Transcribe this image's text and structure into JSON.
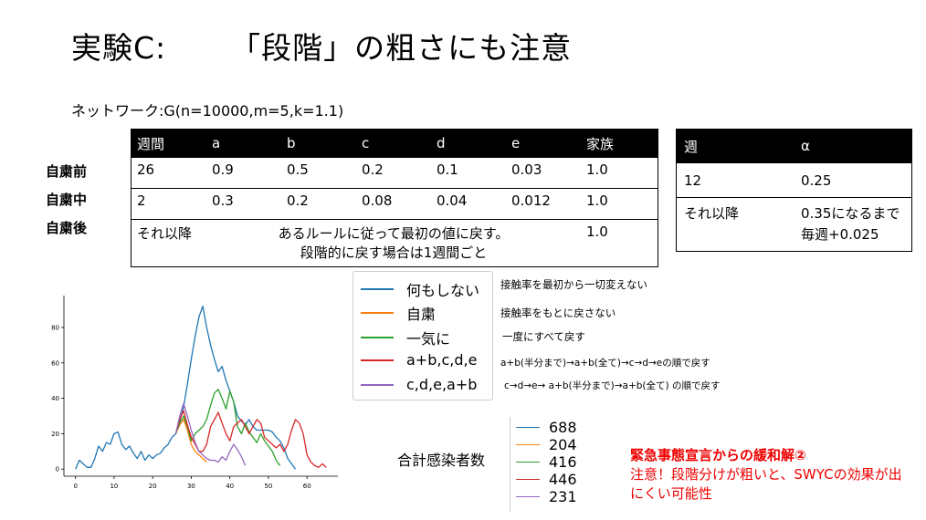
{
  "title": {
    "part1": "実験C:",
    "part2": "「段階」の粗さにも注意"
  },
  "network": "ネットワーク:G(n=10000,m=5,k=1.1)",
  "row_labels": [
    "自粛前",
    "自粛中",
    "自粛後"
  ],
  "table1": {
    "headers": [
      "週間",
      "a",
      "b",
      "c",
      "d",
      "e",
      "家族"
    ],
    "rows": [
      [
        "26",
        "0.9",
        "0.5",
        "0.2",
        "0.1",
        "0.03",
        "1.0"
      ],
      [
        "2",
        "0.3",
        "0.2",
        "0.08",
        "0.04",
        "0.012",
        "1.0"
      ]
    ],
    "after": {
      "week": "それ以降",
      "rule": "あるルールに従って最初の値に戻す。\n段階的に戻す場合は1週間ごと",
      "family": "1.0"
    }
  },
  "table2": {
    "headers": [
      "週",
      "α"
    ],
    "rows": [
      [
        "12",
        "0.25"
      ],
      [
        "それ以降",
        "0.35になるまで毎週+0.025"
      ]
    ]
  },
  "legend": [
    {
      "label": "何もしない",
      "color": "#1f77b4",
      "desc": "接触率を最初から一切変えない"
    },
    {
      "label": "自粛",
      "color": "#ff7f0e",
      "desc": "接触率をもとに戻さない"
    },
    {
      "label": "一気に",
      "color": "#2ca02c",
      "desc": "一度にすべて戻す"
    },
    {
      "label": "a+b,c,d,e",
      "color": "#d62728",
      "desc": "a+b(半分まで)→a+b(全て)→c→d→eの順で戻す"
    },
    {
      "label": "c,d,e,a+b",
      "color": "#9467bd",
      "desc": "c→d→e→ a+b(半分まで)→a+b(全て) の順で戻す"
    }
  ],
  "totals": {
    "label": "合計感染者数",
    "values": [
      "688",
      "204",
      "416",
      "446",
      "231"
    ]
  },
  "note": {
    "heading": "緊急事態宣言からの緩和解②",
    "body": "注意！段階分けが粗いと、SWYCの効果が出にくい可能性"
  },
  "chart_data": {
    "type": "line",
    "xlim": [
      -3,
      68
    ],
    "ylim": [
      -4,
      98
    ],
    "xticks": [
      0,
      10,
      20,
      30,
      40,
      50,
      60
    ],
    "yticks": [
      0,
      20,
      40,
      60,
      80
    ],
    "series": [
      {
        "name": "何もしない",
        "color": "#1f77b4",
        "x": [
          0,
          1,
          2,
          3,
          4,
          5,
          6,
          7,
          8,
          9,
          10,
          11,
          12,
          13,
          14,
          15,
          16,
          17,
          18,
          19,
          20,
          21,
          22,
          23,
          24,
          25,
          26,
          27,
          28,
          29,
          30,
          31,
          32,
          33,
          34,
          35,
          36,
          37,
          38,
          39,
          40,
          41,
          42,
          43,
          44,
          45,
          46,
          47,
          48,
          49,
          50,
          51,
          52,
          53,
          54,
          55,
          56,
          57
        ],
        "y": [
          0,
          5,
          3,
          1,
          1,
          6,
          13,
          10,
          15,
          14,
          20,
          21,
          14,
          11,
          13,
          9,
          6,
          10,
          5,
          8,
          6,
          8,
          9,
          12,
          14,
          18,
          20,
          27,
          35,
          48,
          62,
          75,
          86,
          92,
          80,
          70,
          62,
          55,
          58,
          50,
          44,
          38,
          30,
          27,
          25,
          28,
          24,
          22,
          22,
          22,
          22,
          21,
          18,
          16,
          12,
          6,
          3,
          0
        ]
      },
      {
        "name": "自粛",
        "color": "#ff7f0e",
        "x": [
          26,
          27,
          28,
          29,
          30,
          31,
          32,
          33,
          34
        ],
        "y": [
          20,
          25,
          28,
          22,
          14,
          10,
          8,
          6,
          4
        ]
      },
      {
        "name": "一気に",
        "color": "#2ca02c",
        "x": [
          26,
          27,
          28,
          29,
          30,
          31,
          32,
          33,
          34,
          35,
          36,
          37,
          38,
          39,
          40,
          41,
          42,
          43,
          44,
          45,
          46,
          47,
          48,
          49,
          50,
          51,
          52,
          53
        ],
        "y": [
          20,
          26,
          30,
          24,
          16,
          20,
          22,
          24,
          28,
          36,
          43,
          45,
          40,
          34,
          44,
          38,
          24,
          20,
          26,
          21,
          18,
          15,
          20,
          16,
          13,
          10,
          5,
          2
        ]
      },
      {
        "name": "a+b,c,d,e",
        "color": "#d62728",
        "x": [
          26,
          27,
          28,
          29,
          30,
          31,
          32,
          33,
          34,
          35,
          36,
          37,
          38,
          39,
          40,
          41,
          42,
          43,
          44,
          45,
          46,
          47,
          48,
          49,
          50,
          51,
          52,
          53,
          54,
          55,
          56,
          57,
          58,
          59,
          60,
          61,
          62,
          63,
          64,
          65
        ],
        "y": [
          20,
          28,
          33,
          25,
          18,
          14,
          10,
          10,
          14,
          24,
          28,
          32,
          26,
          20,
          16,
          24,
          26,
          28,
          24,
          20,
          24,
          28,
          26,
          18,
          16,
          14,
          12,
          14,
          10,
          14,
          22,
          28,
          26,
          20,
          8,
          4,
          2,
          1,
          3,
          1
        ]
      },
      {
        "name": "c,d,e,a+b",
        "color": "#9467bd",
        "x": [
          26,
          27,
          28,
          29,
          30,
          31,
          32,
          33,
          34,
          35,
          36,
          37,
          38,
          39,
          40,
          41,
          42,
          43,
          44
        ],
        "y": [
          20,
          30,
          37,
          30,
          22,
          15,
          10,
          8,
          6,
          5,
          5,
          4,
          7,
          5,
          10,
          14,
          11,
          7,
          2
        ]
      }
    ]
  }
}
